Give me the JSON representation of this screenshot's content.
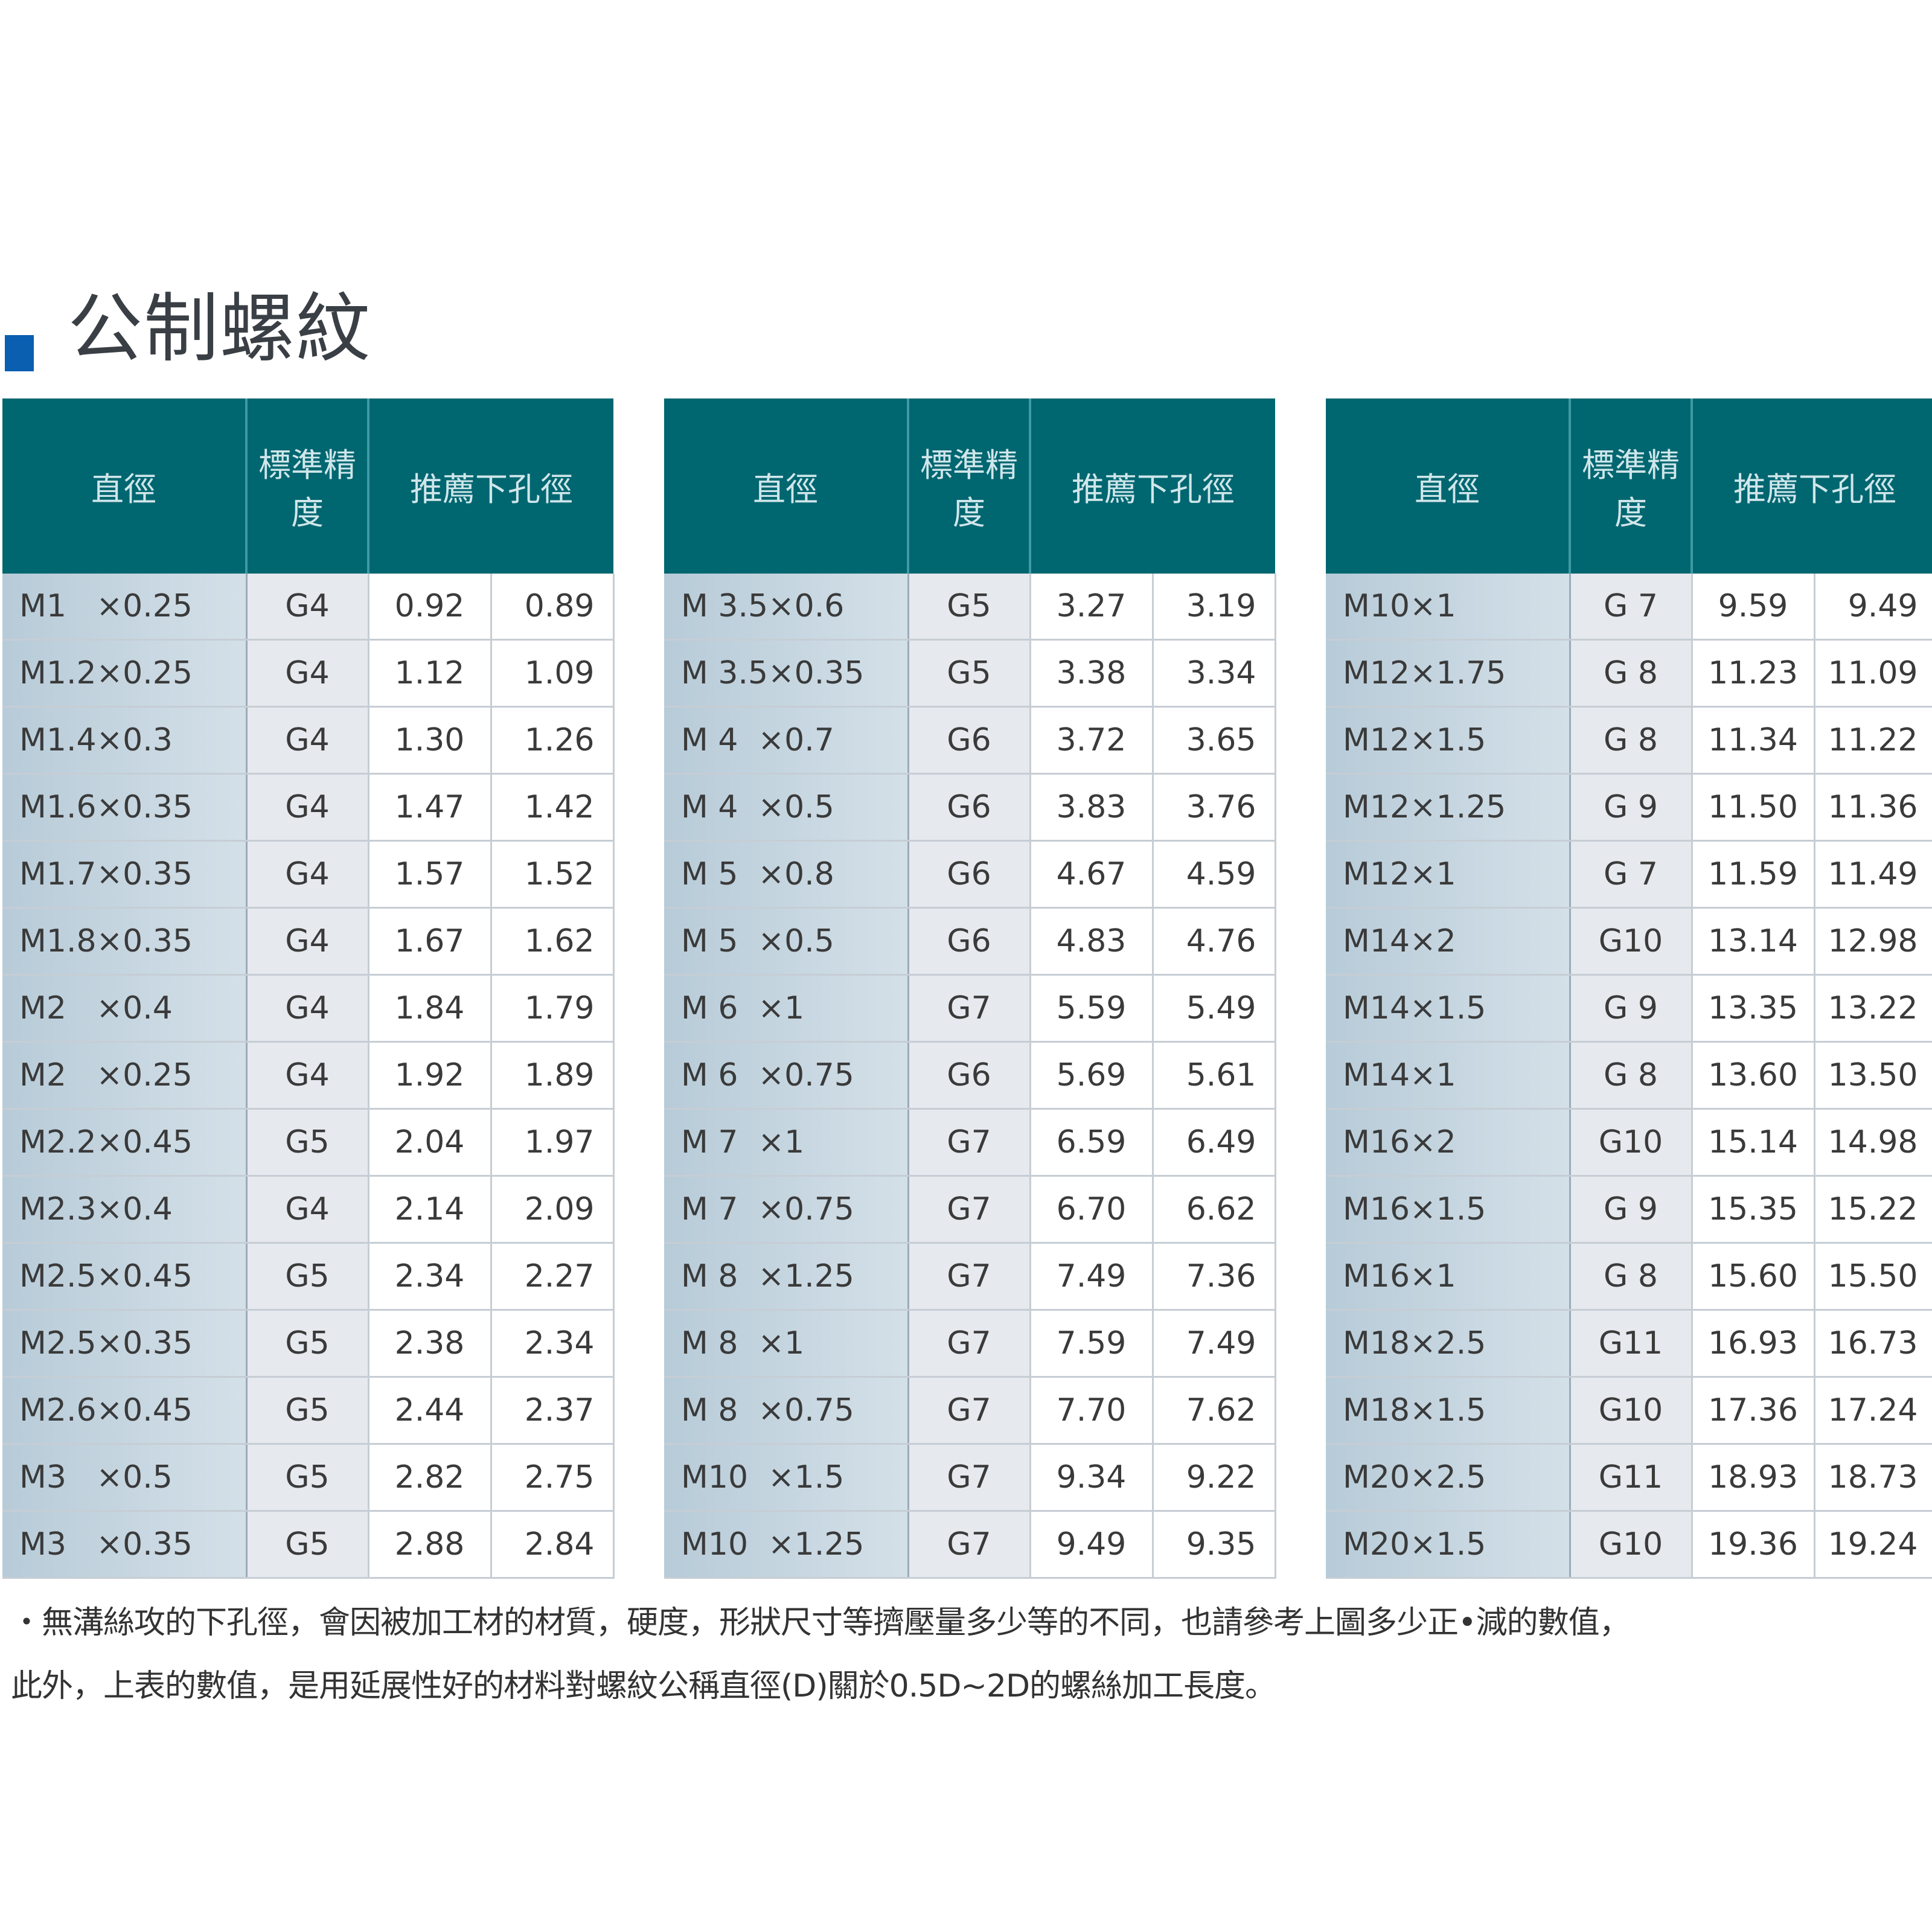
{
  "title": "公制螺紋",
  "headers": {
    "diameter": "直徑",
    "grade": "標準精度",
    "hole": "推薦下孔徑"
  },
  "tables": [
    {
      "rows": [
        [
          "M1   ×0.25",
          "G4",
          "0.92",
          "0.89"
        ],
        [
          "M1.2×0.25",
          "G4",
          "1.12",
          "1.09"
        ],
        [
          "M1.4×0.3",
          "G4",
          "1.30",
          "1.26"
        ],
        [
          "M1.6×0.35",
          "G4",
          "1.47",
          "1.42"
        ],
        [
          "M1.7×0.35",
          "G4",
          "1.57",
          "1.52"
        ],
        [
          "M1.8×0.35",
          "G4",
          "1.67",
          "1.62"
        ],
        [
          "M2   ×0.4",
          "G4",
          "1.84",
          "1.79"
        ],
        [
          "M2   ×0.25",
          "G4",
          "1.92",
          "1.89"
        ],
        [
          "M2.2×0.45",
          "G5",
          "2.04",
          "1.97"
        ],
        [
          "M2.3×0.4",
          "G4",
          "2.14",
          "2.09"
        ],
        [
          "M2.5×0.45",
          "G5",
          "2.34",
          "2.27"
        ],
        [
          "M2.5×0.35",
          "G5",
          "2.38",
          "2.34"
        ],
        [
          "M2.6×0.45",
          "G5",
          "2.44",
          "2.37"
        ],
        [
          "M3   ×0.5",
          "G5",
          "2.82",
          "2.75"
        ],
        [
          "M3   ×0.35",
          "G5",
          "2.88",
          "2.84"
        ]
      ]
    },
    {
      "rows": [
        [
          "M 3.5×0.6",
          "G5",
          "3.27",
          "3.19"
        ],
        [
          "M 3.5×0.35",
          "G5",
          "3.38",
          "3.34"
        ],
        [
          "M 4  ×0.7",
          "G6",
          "3.72",
          "3.65"
        ],
        [
          "M 4  ×0.5",
          "G6",
          "3.83",
          "3.76"
        ],
        [
          "M 5  ×0.8",
          "G6",
          "4.67",
          "4.59"
        ],
        [
          "M 5  ×0.5",
          "G6",
          "4.83",
          "4.76"
        ],
        [
          "M 6  ×1",
          "G7",
          "5.59",
          "5.49"
        ],
        [
          "M 6  ×0.75",
          "G6",
          "5.69",
          "5.61"
        ],
        [
          "M 7  ×1",
          "G7",
          "6.59",
          "6.49"
        ],
        [
          "M 7  ×0.75",
          "G7",
          "6.70",
          "6.62"
        ],
        [
          "M 8  ×1.25",
          "G7",
          "7.49",
          "7.36"
        ],
        [
          "M 8  ×1",
          "G7",
          "7.59",
          "7.49"
        ],
        [
          "M 8  ×0.75",
          "G7",
          "7.70",
          "7.62"
        ],
        [
          "M10  ×1.5",
          "G7",
          "9.34",
          "9.22"
        ],
        [
          "M10  ×1.25",
          "G7",
          "9.49",
          "9.35"
        ]
      ]
    },
    {
      "rows": [
        [
          "M10×1",
          "G 7",
          "9.59",
          "9.49"
        ],
        [
          "M12×1.75",
          "G 8",
          "11.23",
          "11.09"
        ],
        [
          "M12×1.5",
          "G 8",
          "11.34",
          "11.22"
        ],
        [
          "M12×1.25",
          "G 9",
          "11.50",
          "11.36"
        ],
        [
          "M12×1",
          "G 7",
          "11.59",
          "11.49"
        ],
        [
          "M14×2",
          "G10",
          "13.14",
          "12.98"
        ],
        [
          "M14×1.5",
          "G 9",
          "13.35",
          "13.22"
        ],
        [
          "M14×1",
          "G 8",
          "13.60",
          "13.50"
        ],
        [
          "M16×2",
          "G10",
          "15.14",
          "14.98"
        ],
        [
          "M16×1.5",
          "G 9",
          "15.35",
          "15.22"
        ],
        [
          "M16×1",
          "G 8",
          "15.60",
          "15.50"
        ],
        [
          "M18×2.5",
          "G11",
          "16.93",
          "16.73"
        ],
        [
          "M18×1.5",
          "G10",
          "17.36",
          "17.24"
        ],
        [
          "M20×2.5",
          "G11",
          "18.93",
          "18.73"
        ],
        [
          "M20×1.5",
          "G10",
          "19.36",
          "19.24"
        ]
      ]
    }
  ],
  "notes": [
    "・無溝絲攻的下孔徑，會因被加工材的材質，硬度，形狀尺寸等擠壓量多少等的不同，也請參考上圖多少正•減的數值，",
    "  此外，上表的數值，是用延展性好的材料對螺紋公稱直徑(D)關於0.5D~2D的螺絲加工長度。"
  ]
}
